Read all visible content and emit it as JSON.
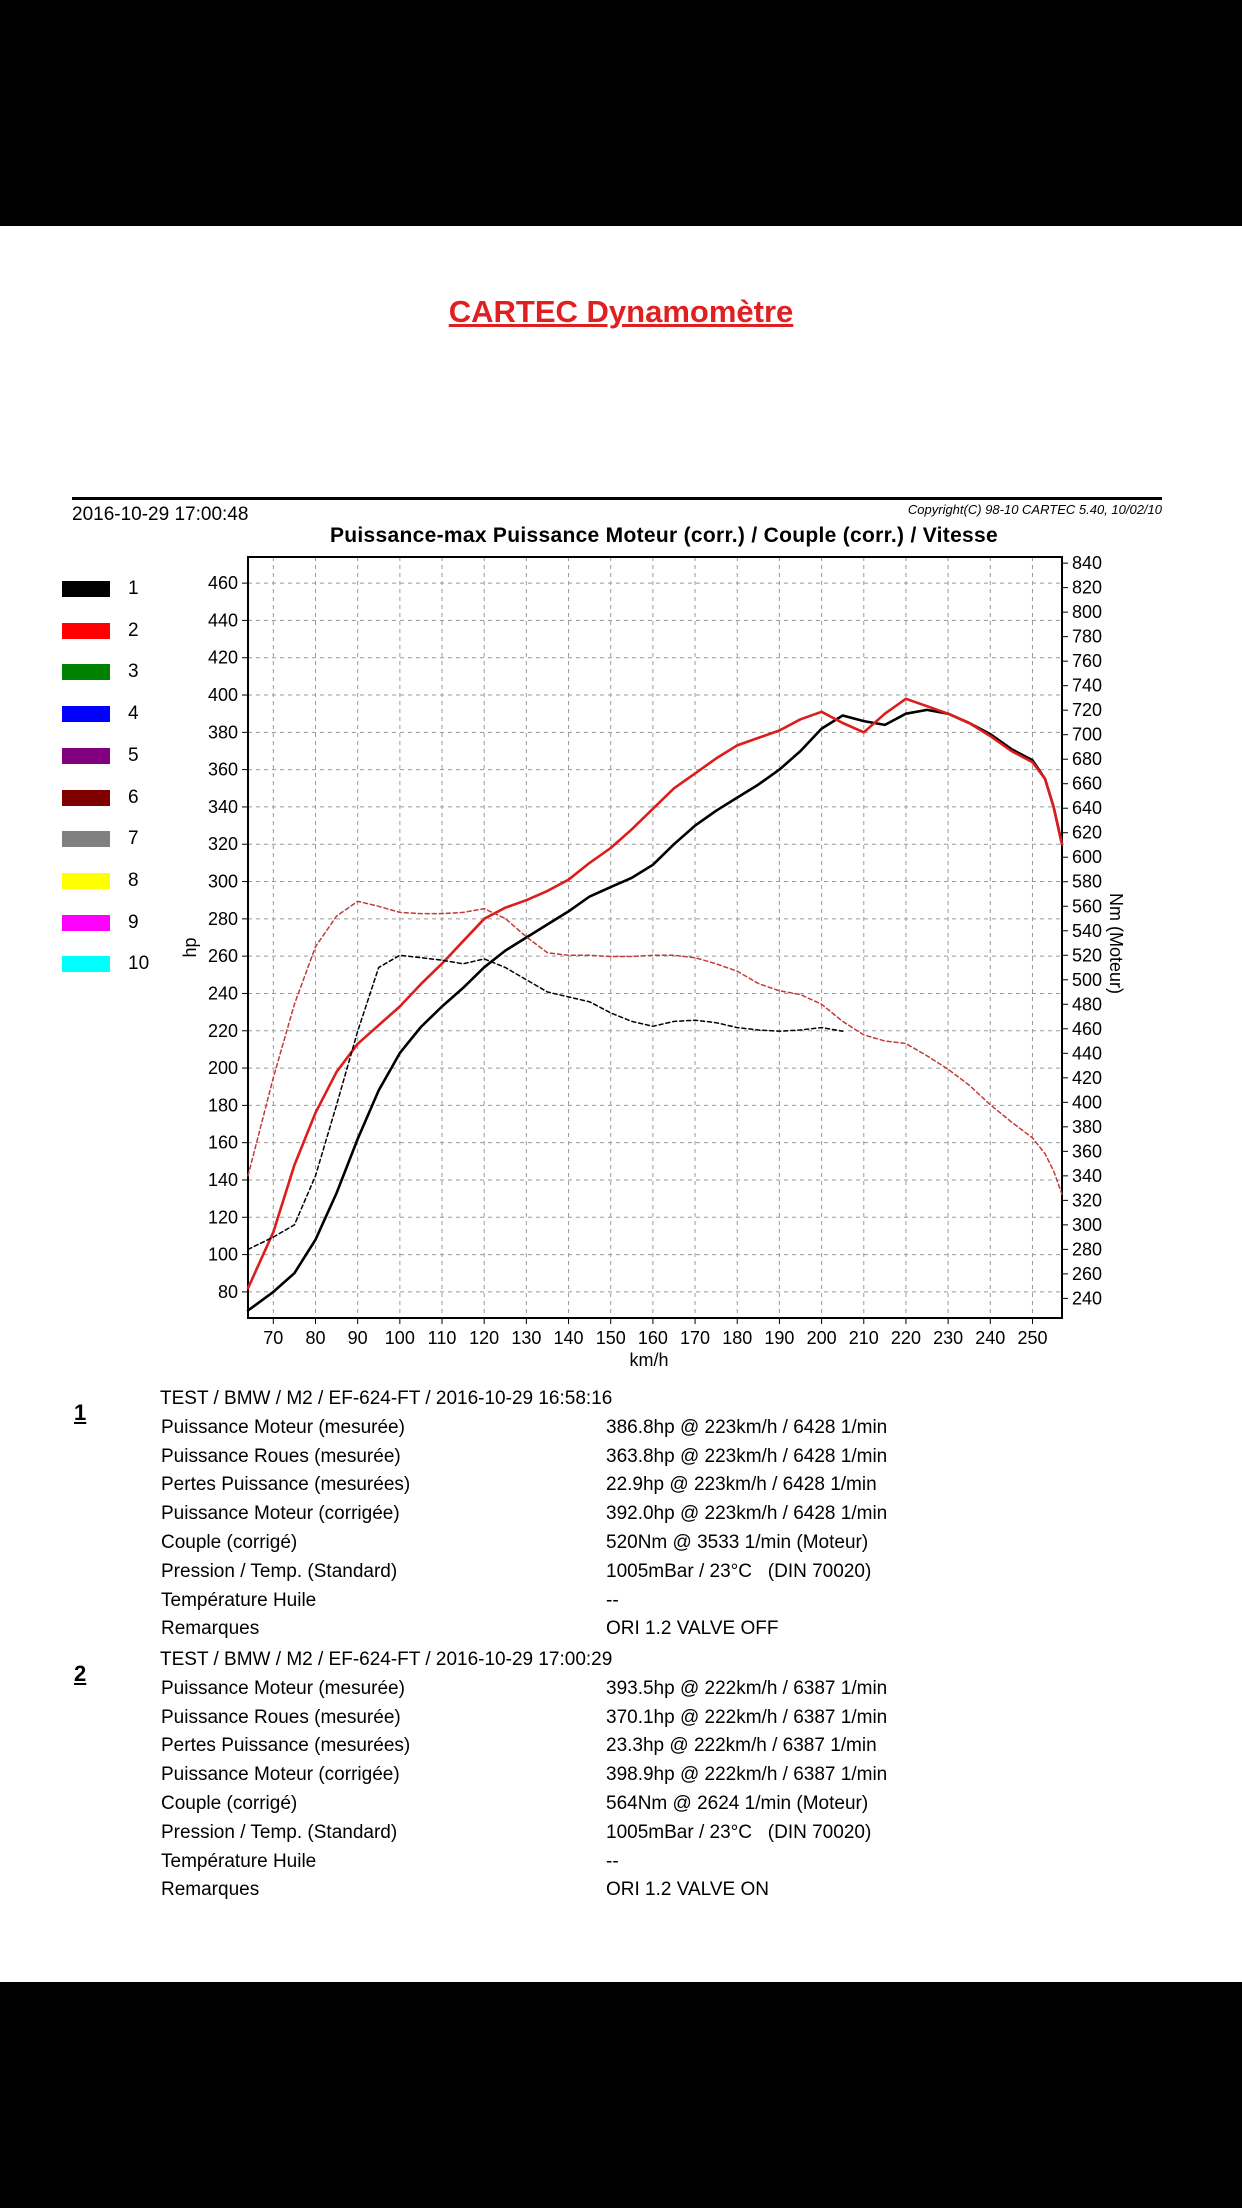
{
  "page": {
    "title": "CARTEC Dynamomètre",
    "timestamp": "2016-10-29 17:00:48",
    "copyright": "Copyright(C) 98-10 CARTEC 5.40, 10/02/10"
  },
  "legend": [
    {
      "label": "1",
      "color": "#000000"
    },
    {
      "label": "2",
      "color": "#ff0000"
    },
    {
      "label": "3",
      "color": "#008000"
    },
    {
      "label": "4",
      "color": "#0000ff"
    },
    {
      "label": "5",
      "color": "#800080"
    },
    {
      "label": "6",
      "color": "#800000"
    },
    {
      "label": "7",
      "color": "#808080"
    },
    {
      "label": "8",
      "color": "#ffff00"
    },
    {
      "label": "9",
      "color": "#ff00ff"
    },
    {
      "label": "10",
      "color": "#00ffff"
    }
  ],
  "chart_data": {
    "type": "line",
    "title": "Puissance-max Puissance Moteur (corr.) / Couple (corr.) / Vitesse",
    "xlabel": "km/h",
    "ylabel": "hp",
    "y2label": "Nm (Moteur)",
    "xlim": [
      64,
      257
    ],
    "ylim": [
      66,
      474
    ],
    "y2lim": [
      224,
      845
    ],
    "x_ticks": [
      70,
      80,
      90,
      100,
      110,
      120,
      130,
      140,
      150,
      160,
      170,
      180,
      190,
      200,
      210,
      220,
      230,
      240,
      250
    ],
    "y_ticks": [
      80,
      100,
      120,
      140,
      160,
      180,
      200,
      220,
      240,
      260,
      280,
      300,
      320,
      340,
      360,
      380,
      400,
      420,
      440,
      460
    ],
    "y2_ticks": [
      240,
      260,
      280,
      300,
      320,
      340,
      360,
      380,
      400,
      420,
      440,
      460,
      480,
      500,
      520,
      540,
      560,
      580,
      600,
      620,
      640,
      660,
      680,
      700,
      720,
      740,
      760,
      780,
      800,
      820,
      840
    ],
    "grid": true,
    "series": [
      {
        "name": "1",
        "kind": "power",
        "axis": "hp",
        "color": "#000000",
        "x": [
          64,
          70,
          75,
          80,
          85,
          90,
          95,
          100,
          105,
          110,
          115,
          120,
          125,
          130,
          135,
          140,
          145,
          150,
          155,
          160,
          165,
          170,
          175,
          180,
          185,
          190,
          195,
          200,
          205,
          210,
          215,
          220,
          225,
          230,
          235,
          240,
          245,
          250,
          253,
          255,
          257
        ],
        "y": [
          70,
          80,
          90,
          108,
          133,
          162,
          188,
          208,
          222,
          233,
          243,
          254,
          263,
          270,
          277,
          284,
          292,
          297,
          302,
          309,
          320,
          330,
          338,
          345,
          352,
          360,
          370,
          382,
          389,
          386,
          384,
          390,
          392,
          390,
          385,
          379,
          371,
          365,
          355,
          340,
          320
        ]
      },
      {
        "name": "2",
        "kind": "power",
        "axis": "hp",
        "color": "#dd1c1c",
        "x": [
          64,
          70,
          75,
          80,
          85,
          90,
          95,
          100,
          105,
          110,
          115,
          120,
          125,
          130,
          135,
          140,
          145,
          150,
          155,
          160,
          165,
          170,
          175,
          180,
          185,
          190,
          195,
          200,
          205,
          210,
          215,
          220,
          225,
          230,
          235,
          240,
          245,
          250,
          253,
          255,
          257
        ],
        "y": [
          82,
          112,
          148,
          176,
          198,
          213,
          223,
          233,
          245,
          256,
          268,
          280,
          286,
          290,
          295,
          301,
          310,
          318,
          328,
          339,
          350,
          358,
          366,
          373,
          377,
          381,
          387,
          391,
          385,
          380,
          390,
          398,
          394,
          390,
          385,
          378,
          370,
          364,
          355,
          340,
          320
        ]
      },
      {
        "name": "1",
        "kind": "torque",
        "axis": "Nm",
        "color": "#000000",
        "dashed": true,
        "x": [
          64,
          70,
          75,
          80,
          85,
          90,
          95,
          100,
          105,
          110,
          115,
          120,
          125,
          130,
          135,
          140,
          145,
          150,
          155,
          160,
          165,
          170,
          175,
          180,
          185,
          190,
          195,
          200,
          205
        ],
        "y": [
          280,
          290,
          300,
          340,
          398,
          458,
          510,
          520,
          518,
          516,
          513,
          517,
          510,
          500,
          490,
          486,
          482,
          473,
          466,
          462,
          466,
          467,
          465,
          461,
          459,
          458,
          459,
          461,
          458
        ]
      },
      {
        "name": "2",
        "kind": "torque",
        "axis": "Nm",
        "color": "#c23a3a",
        "dashed": true,
        "x": [
          64,
          70,
          75,
          80,
          85,
          90,
          95,
          100,
          105,
          110,
          115,
          120,
          125,
          130,
          135,
          140,
          145,
          150,
          155,
          160,
          165,
          170,
          175,
          180,
          185,
          190,
          195,
          200,
          205,
          210,
          215,
          220,
          225,
          230,
          235,
          240,
          245,
          250,
          253,
          255,
          257
        ],
        "y": [
          340,
          420,
          480,
          527,
          552,
          564,
          560,
          555,
          554,
          554,
          555,
          558,
          550,
          535,
          522,
          520,
          520,
          519,
          519,
          520,
          520,
          518,
          513,
          507,
          497,
          491,
          488,
          480,
          466,
          455,
          450,
          448,
          438,
          427,
          414,
          398,
          384,
          371,
          358,
          344,
          325
        ]
      }
    ]
  },
  "runs": [
    {
      "number": "1",
      "header": "TEST / BMW / M2 / EF-624-FT / 2016-10-29 16:58:16",
      "rows": [
        {
          "label": "Puissance Moteur (mesurée)",
          "value": "386.8hp @ 223km/h / 6428 1/min"
        },
        {
          "label": "Puissance Roues (mesurée)",
          "value": "363.8hp @ 223km/h / 6428 1/min"
        },
        {
          "label": "Pertes Puissance (mesurées)",
          "value": "22.9hp @ 223km/h / 6428 1/min"
        },
        {
          "label": "Puissance Moteur (corrigée)",
          "value": "392.0hp @ 223km/h / 6428 1/min"
        },
        {
          "label": "Couple (corrigé)",
          "value": "520Nm @ 3533 1/min (Moteur)"
        },
        {
          "label": "Pression / Temp. (Standard)",
          "value": "1005mBar / 23°C   (DIN 70020)"
        },
        {
          "label": "Température Huile",
          "value": "--"
        },
        {
          "label": "Remarques",
          "value": "ORI 1.2 VALVE OFF"
        }
      ]
    },
    {
      "number": "2",
      "header": "TEST / BMW / M2 / EF-624-FT / 2016-10-29 17:00:29",
      "rows": [
        {
          "label": "Puissance Moteur (mesurée)",
          "value": "393.5hp @ 222km/h / 6387 1/min"
        },
        {
          "label": "Puissance Roues (mesurée)",
          "value": "370.1hp @ 222km/h / 6387 1/min"
        },
        {
          "label": "Pertes Puissance (mesurées)",
          "value": "23.3hp @ 222km/h / 6387 1/min"
        },
        {
          "label": "Puissance Moteur (corrigée)",
          "value": "398.9hp @ 222km/h / 6387 1/min"
        },
        {
          "label": "Couple (corrigé)",
          "value": "564Nm @ 2624 1/min (Moteur)"
        },
        {
          "label": "Pression / Temp. (Standard)",
          "value": "1005mBar / 23°C   (DIN 70020)"
        },
        {
          "label": "Température Huile",
          "value": "--"
        },
        {
          "label": "Remarques",
          "value": "ORI 1.2 VALVE ON"
        }
      ]
    }
  ]
}
